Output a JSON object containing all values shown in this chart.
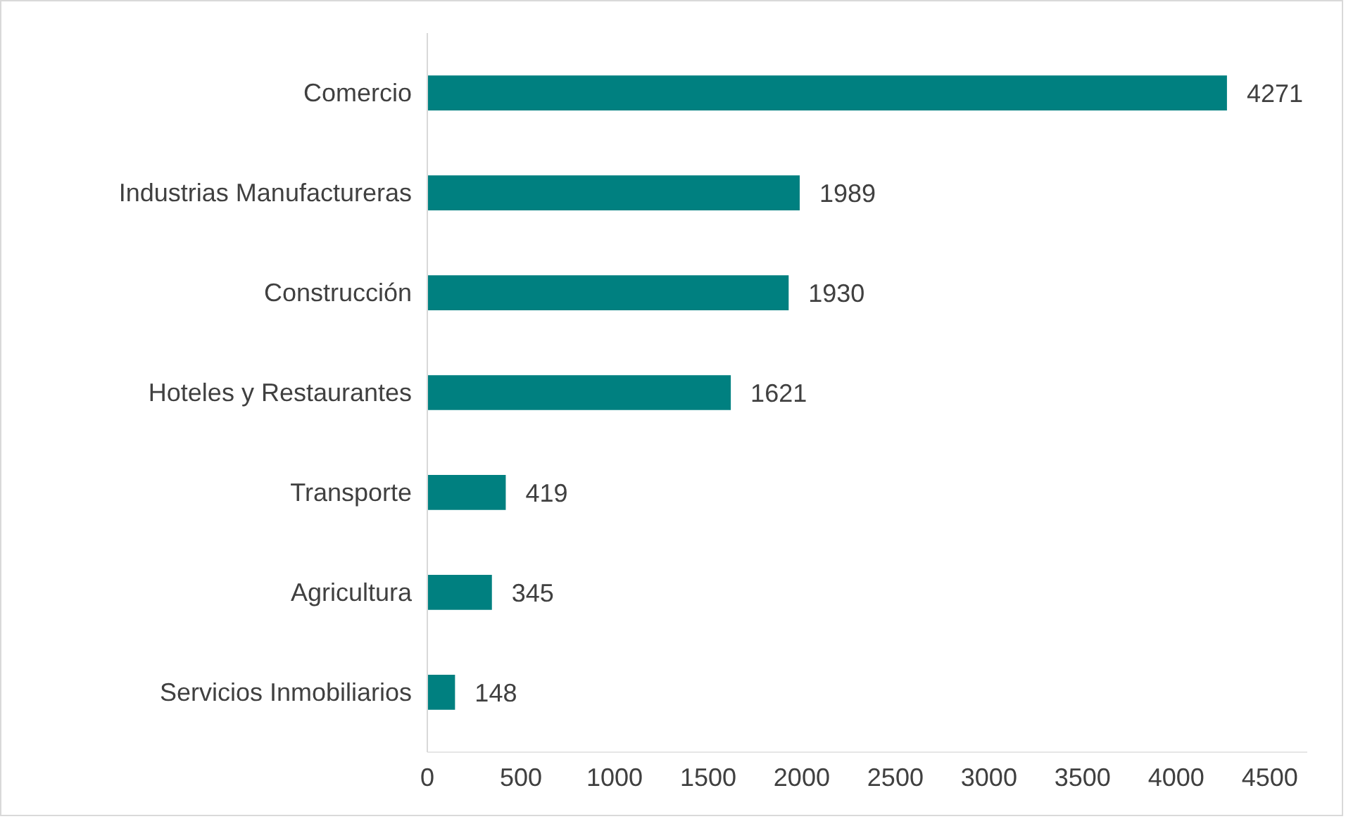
{
  "chart_data": {
    "type": "bar",
    "orientation": "horizontal",
    "categories": [
      "Comercio",
      "Industrias Manufactureras",
      "Construcción",
      "Hoteles y Restaurantes",
      "Transporte",
      "Agricultura",
      "Servicios Inmobiliarios"
    ],
    "values": [
      4271,
      1989,
      1930,
      1621,
      419,
      345,
      148
    ],
    "color": "#008080",
    "xlim": [
      0,
      4700
    ],
    "xticks": [
      0,
      500,
      1000,
      1500,
      2000,
      2500,
      3000,
      3500,
      4000,
      4500
    ],
    "grid": false,
    "data_labels": true
  }
}
